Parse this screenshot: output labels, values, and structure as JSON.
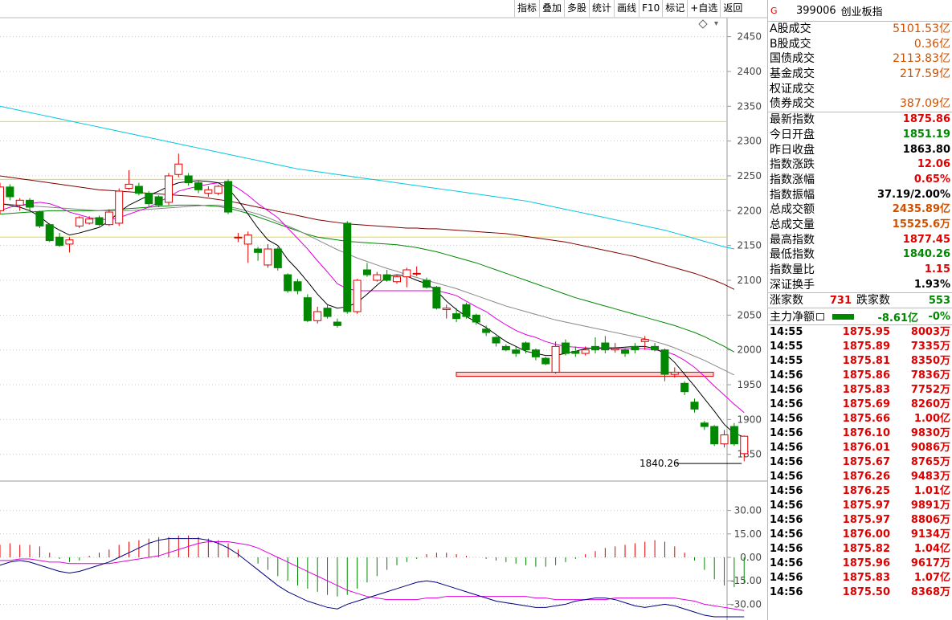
{
  "toolbar": {
    "items": [
      "指标",
      "叠加",
      "多股",
      "统计",
      "画线",
      "F10",
      "标记",
      "+自选",
      "返回"
    ]
  },
  "header": {
    "flag": "G",
    "code": "399006",
    "name": "创业板指"
  },
  "turnover": [
    {
      "label": "A股成交",
      "value": "5101.53亿"
    },
    {
      "label": "B股成交",
      "value": "0.36亿"
    },
    {
      "label": "国债成交",
      "value": "2113.83亿"
    },
    {
      "label": "基金成交",
      "value": "217.59亿"
    },
    {
      "label": "权证成交",
      "value": ""
    },
    {
      "label": "债券成交",
      "value": "387.09亿"
    }
  ],
  "quote": [
    {
      "label": "最新指数",
      "value": "1875.86",
      "color": "#e00000"
    },
    {
      "label": "今日开盘",
      "value": "1851.19",
      "color": "#008800"
    },
    {
      "label": "昨日收盘",
      "value": "1863.80",
      "color": "#000000"
    },
    {
      "label": "指数涨跌",
      "value": "12.06",
      "color": "#e00000"
    },
    {
      "label": "指数涨幅",
      "value": "0.65%",
      "color": "#e00000"
    },
    {
      "label": "指数振幅",
      "value": "37.19/2.00%",
      "color": "#000000"
    },
    {
      "label": "总成交额",
      "value": "2435.89亿",
      "color": "#d05000"
    },
    {
      "label": "总成交量",
      "value": "15525.6万",
      "color": "#d05000"
    },
    {
      "label": "最高指数",
      "value": "1877.45",
      "color": "#e00000"
    },
    {
      "label": "最低指数",
      "value": "1840.26",
      "color": "#008800"
    },
    {
      "label": "指数量比",
      "value": "1.15",
      "color": "#e00000"
    },
    {
      "label": "深证换手",
      "value": "1.93%",
      "color": "#000000"
    }
  ],
  "breadth": {
    "up_label": "涨家数",
    "up": "731",
    "down_label": "跌家数",
    "down": "553"
  },
  "main_force": {
    "label": "主力净额",
    "value": "-8.61亿",
    "pct": "-0%"
  },
  "ticks": [
    [
      "14:55",
      "1875.95",
      "8003万"
    ],
    [
      "14:55",
      "1875.89",
      "7335万"
    ],
    [
      "14:55",
      "1875.81",
      "8350万"
    ],
    [
      "14:56",
      "1875.86",
      "7836万"
    ],
    [
      "14:56",
      "1875.83",
      "7752万"
    ],
    [
      "14:56",
      "1875.69",
      "8260万"
    ],
    [
      "14:56",
      "1875.66",
      "1.00亿"
    ],
    [
      "14:56",
      "1876.10",
      "9830万"
    ],
    [
      "14:56",
      "1876.01",
      "9086万"
    ],
    [
      "14:56",
      "1875.67",
      "8765万"
    ],
    [
      "14:56",
      "1876.26",
      "9483万"
    ],
    [
      "14:56",
      "1876.25",
      "1.01亿"
    ],
    [
      "14:56",
      "1875.97",
      "9891万"
    ],
    [
      "14:56",
      "1875.97",
      "8806万"
    ],
    [
      "14:56",
      "1876.00",
      "9134万"
    ],
    [
      "14:56",
      "1875.82",
      "1.04亿"
    ],
    [
      "14:56",
      "1875.96",
      "9617万"
    ],
    [
      "14:56",
      "1875.83",
      "1.07亿"
    ],
    [
      "14:56",
      "1875.50",
      "8368万"
    ]
  ],
  "chart_data": {
    "type": "candlestick",
    "ylim": [
      1822,
      2468
    ],
    "yticks": [
      2450,
      2400,
      2350,
      2300,
      2250,
      2200,
      2150,
      2100,
      2050,
      2000,
      1950,
      1900,
      1850
    ],
    "hlines": [
      2328,
      2245,
      2162
    ],
    "support_band": [
      1968,
      1962
    ],
    "low_label": "1840.26",
    "colors": {
      "up": "#e00000",
      "down": "#008800",
      "ma5": "#000000",
      "ma10": "#e000e0",
      "ma20": "#888888",
      "ma30": "#008800",
      "ma60": "#800000",
      "ma120": "#00c8e0",
      "hline": "#e8e000",
      "support": "#e00000"
    },
    "candles": [
      [
        2200,
        2234,
        2240,
        2195
      ],
      [
        2234,
        2220,
        2238,
        2215
      ],
      [
        2208,
        2215,
        2218,
        2200
      ],
      [
        2215,
        2205,
        2218,
        2200
      ],
      [
        2198,
        2178,
        2200,
        2175
      ],
      [
        2180,
        2157,
        2182,
        2155
      ],
      [
        2162,
        2150,
        2168,
        2148
      ],
      [
        2152,
        2158,
        2162,
        2140
      ],
      [
        2178,
        2190,
        2192,
        2175
      ],
      [
        2182,
        2188,
        2192,
        2180
      ],
      [
        2190,
        2180,
        2193,
        2178
      ],
      [
        2180,
        2198,
        2202,
        2178
      ],
      [
        2182,
        2228,
        2232,
        2178
      ],
      [
        2232,
        2238,
        2258,
        2230
      ],
      [
        2235,
        2225,
        2240,
        2222
      ],
      [
        2225,
        2210,
        2228,
        2205
      ],
      [
        2220,
        2208,
        2222,
        2205
      ],
      [
        2212,
        2250,
        2254,
        2208
      ],
      [
        2252,
        2267,
        2282,
        2248
      ],
      [
        2250,
        2240,
        2254,
        2236
      ],
      [
        2240,
        2230,
        2242,
        2225
      ],
      [
        2225,
        2230,
        2235,
        2220
      ],
      [
        2225,
        2235,
        2237,
        2222
      ],
      [
        2242,
        2198,
        2245,
        2195
      ],
      [
        2162,
        2162,
        2168,
        2155
      ],
      [
        2152,
        2165,
        2170,
        2125
      ],
      [
        2145,
        2140,
        2148,
        2128
      ],
      [
        2122,
        2145,
        2152,
        2118
      ],
      [
        2145,
        2118,
        2148,
        2114
      ],
      [
        2108,
        2085,
        2110,
        2082
      ],
      [
        2098,
        2085,
        2102,
        2080
      ],
      [
        2075,
        2042,
        2080,
        2040
      ],
      [
        2042,
        2055,
        2062,
        2038
      ],
      [
        2060,
        2048,
        2065,
        2045
      ],
      [
        2040,
        2035,
        2045,
        2032
      ],
      [
        2182,
        2055,
        2185,
        2052
      ],
      [
        2055,
        2100,
        2102,
        2052
      ],
      [
        2115,
        2108,
        2125,
        2105
      ],
      [
        2100,
        2108,
        2112,
        2098
      ],
      [
        2108,
        2100,
        2115,
        2098
      ],
      [
        2098,
        2105,
        2108,
        2095
      ],
      [
        2105,
        2115,
        2118,
        2090
      ],
      [
        2110,
        2110,
        2120,
        2106
      ],
      [
        2100,
        2090,
        2104,
        2088
      ],
      [
        2090,
        2060,
        2092,
        2058
      ],
      [
        2058,
        2060,
        2065,
        2045
      ],
      [
        2052,
        2045,
        2060,
        2040
      ],
      [
        2065,
        2048,
        2068,
        2045
      ],
      [
        2050,
        2040,
        2052,
        2036
      ],
      [
        2030,
        2025,
        2035,
        2020
      ],
      [
        2018,
        2010,
        2020,
        2005
      ],
      [
        2005,
        2000,
        2008,
        1998
      ],
      [
        2000,
        1995,
        2005,
        1990
      ],
      [
        2010,
        2000,
        2012,
        1995
      ],
      [
        2000,
        1990,
        2002,
        1985
      ],
      [
        1988,
        1980,
        1990,
        1978
      ],
      [
        1968,
        2005,
        2012,
        1966
      ],
      [
        2010,
        1995,
        2015,
        1992
      ],
      [
        1998,
        1995,
        2005,
        1990
      ],
      [
        1995,
        2000,
        2005,
        1992
      ],
      [
        2005,
        2000,
        2018,
        1995
      ],
      [
        2010,
        2000,
        2020,
        1995
      ],
      [
        2000,
        2002,
        2010,
        1996
      ],
      [
        2000,
        1995,
        2002,
        1990
      ],
      [
        2005,
        2000,
        2010,
        1995
      ],
      [
        2012,
        2015,
        2020,
        2000
      ],
      [
        2005,
        2000,
        2010,
        1998
      ],
      [
        2000,
        1965,
        2002,
        1955
      ],
      [
        1965,
        1968,
        1975,
        1960
      ],
      [
        1952,
        1940,
        1955,
        1935
      ],
      [
        1925,
        1915,
        1930,
        1910
      ],
      [
        1895,
        1890,
        1898,
        1885
      ],
      [
        1890,
        1865,
        1892,
        1862
      ],
      [
        1865,
        1878,
        1885,
        1860
      ],
      [
        1890,
        1865,
        1895,
        1862
      ],
      [
        1851,
        1876,
        1877,
        1840
      ]
    ],
    "ma5": [
      2210,
      2208,
      2205,
      2200,
      2192,
      2180,
      2172,
      2165,
      2168,
      2172,
      2176,
      2185,
      2198,
      2208,
      2215,
      2222,
      2228,
      2235,
      2240,
      2242,
      2243,
      2242,
      2240,
      2232,
      2215,
      2195,
      2175,
      2158,
      2150,
      2130,
      2115,
      2098,
      2080,
      2065,
      2060,
      2062,
      2068,
      2080,
      2093,
      2105,
      2108,
      2106,
      2100,
      2095,
      2085,
      2070,
      2058,
      2048,
      2040,
      2032,
      2022,
      2012,
      2005,
      1998,
      1995,
      1992,
      1992,
      1995,
      1998,
      2002,
      2003,
      2003,
      2003,
      2004,
      2005,
      2005,
      2002,
      1995,
      1982,
      1965,
      1948,
      1930,
      1912,
      1893,
      1880,
      1875
    ],
    "ma10": [
      2200,
      2205,
      2208,
      2210,
      2212,
      2210,
      2205,
      2198,
      2194,
      2190,
      2188,
      2187,
      2190,
      2195,
      2200,
      2205,
      2212,
      2220,
      2228,
      2232,
      2235,
      2238,
      2240,
      2240,
      2232,
      2222,
      2210,
      2200,
      2190,
      2175,
      2160,
      2145,
      2128,
      2112,
      2095,
      2088,
      2085,
      2085,
      2085,
      2085,
      2085,
      2085,
      2085,
      2085,
      2085,
      2082,
      2078,
      2070,
      2062,
      2055,
      2045,
      2036,
      2028,
      2022,
      2018,
      2012,
      2008,
      2005,
      2004,
      2003,
      2002,
      2002,
      2002,
      2002,
      2002,
      2002,
      2000,
      1998,
      1993,
      1985,
      1975,
      1962,
      1948,
      1935,
      1922,
      1910
    ],
    "ma20": [
      2210,
      2209,
      2208,
      2207,
      2206,
      2205,
      2204,
      2203,
      2202,
      2201,
      2200,
      2200,
      2200,
      2200,
      2201,
      2202,
      2203,
      2204,
      2205,
      2206,
      2207,
      2208,
      2208,
      2206,
      2203,
      2199,
      2195,
      2190,
      2184,
      2178,
      2172,
      2165,
      2158,
      2151,
      2144,
      2138,
      2132,
      2127,
      2122,
      2117,
      2113,
      2108,
      2104,
      2100,
      2096,
      2092,
      2088,
      2083,
      2078,
      2073,
      2068,
      2063,
      2059,
      2055,
      2051,
      2047,
      2043,
      2040,
      2037,
      2034,
      2031,
      2028,
      2025,
      2022,
      2019,
      2016,
      2012,
      2008,
      2003,
      1997,
      1991,
      1985,
      1978,
      1971,
      1964,
      1958
    ],
    "ma30": [
      2195,
      2196,
      2197,
      2198,
      2199,
      2200,
      2200,
      2200,
      2200,
      2200,
      2200,
      2201,
      2202,
      2203,
      2204,
      2205,
      2206,
      2207,
      2208,
      2208,
      2208,
      2207,
      2206,
      2204,
      2200,
      2196,
      2191,
      2186,
      2181,
      2176,
      2171,
      2166,
      2162,
      2160,
      2158,
      2156,
      2155,
      2154,
      2153,
      2152,
      2151,
      2149,
      2147,
      2144,
      2141,
      2137,
      2133,
      2129,
      2125,
      2120,
      2115,
      2110,
      2105,
      2100,
      2095,
      2090,
      2085,
      2080,
      2075,
      2071,
      2067,
      2063,
      2059,
      2055,
      2051,
      2047,
      2043,
      2039,
      2035,
      2030,
      2025,
      2019,
      2012,
      2005,
      1997,
      1988
    ],
    "ma60": [
      2250,
      2248,
      2246,
      2244,
      2242,
      2240,
      2238,
      2236,
      2234,
      2232,
      2230,
      2229,
      2228,
      2227,
      2226,
      2225,
      2224,
      2223,
      2222,
      2221,
      2220,
      2218,
      2216,
      2214,
      2211,
      2208,
      2205,
      2202,
      2199,
      2196,
      2193,
      2190,
      2187,
      2185,
      2183,
      2181,
      2180,
      2179,
      2178,
      2177,
      2176,
      2175,
      2175,
      2174,
      2174,
      2173,
      2172,
      2171,
      2170,
      2169,
      2168,
      2167,
      2165,
      2163,
      2161,
      2159,
      2157,
      2155,
      2152,
      2149,
      2146,
      2143,
      2140,
      2137,
      2134,
      2130,
      2126,
      2122,
      2118,
      2114,
      2110,
      2105,
      2100,
      2094,
      2087,
      2080
    ],
    "ma120": [
      2350,
      2347,
      2344,
      2341,
      2338,
      2335,
      2332,
      2329,
      2326,
      2323,
      2320,
      2317,
      2314,
      2311,
      2308,
      2305,
      2302,
      2299,
      2296,
      2293,
      2290,
      2287,
      2284,
      2281,
      2278,
      2275,
      2272,
      2269,
      2266,
      2263,
      2260,
      2258,
      2256,
      2254,
      2252,
      2250,
      2248,
      2246,
      2244,
      2242,
      2240,
      2238,
      2236,
      2234,
      2232,
      2230,
      2228,
      2226,
      2224,
      2222,
      2220,
      2218,
      2216,
      2214,
      2211,
      2208,
      2205,
      2202,
      2199,
      2196,
      2193,
      2190,
      2187,
      2184,
      2181,
      2178,
      2175,
      2172,
      2168,
      2164,
      2160,
      2156,
      2152,
      2148,
      2145,
      2143
    ],
    "ma60_to": 74,
    "ma120_to": 74,
    "ma30_to": 74,
    "ma20_to": 74,
    "macd": {
      "ylim": [
        -38,
        38
      ],
      "yticks": [
        "30.00",
        "15.00",
        "0.00",
        "-15.00",
        "-30.00"
      ],
      "ytick_values": [
        30,
        15,
        0,
        -15,
        -30
      ],
      "hist": [
        8,
        9,
        8,
        8,
        7,
        3,
        -1,
        -3,
        -2,
        1,
        3,
        5,
        8,
        10,
        11,
        12,
        13,
        13,
        14,
        14,
        13,
        12,
        11,
        9,
        5,
        0,
        -4,
        -8,
        -12,
        -15,
        -18,
        -20,
        -22,
        -24,
        -25,
        -24,
        -20,
        -16,
        -12,
        -8,
        -5,
        -3,
        -1,
        2,
        3,
        3,
        2,
        1,
        0,
        -1,
        -2,
        -3,
        -4,
        -5,
        -6,
        -6,
        -5,
        -3,
        -1,
        2,
        4,
        6,
        7,
        8,
        9,
        10,
        11,
        10,
        7,
        3,
        -2,
        -8,
        -14,
        -18,
        -19,
        -16
      ],
      "dif": [
        -5,
        -3,
        -2,
        -3,
        -5,
        -7,
        -9,
        -10,
        -9,
        -7,
        -5,
        -3,
        0,
        3,
        6,
        9,
        11,
        12,
        12,
        12,
        12,
        11,
        9,
        6,
        2,
        -3,
        -8,
        -13,
        -18,
        -22,
        -25,
        -28,
        -30,
        -32,
        -33,
        -30,
        -28,
        -26,
        -24,
        -22,
        -20,
        -18,
        -16,
        -15,
        -16,
        -18,
        -20,
        -22,
        -24,
        -26,
        -28,
        -29,
        -30,
        -31,
        -32,
        -32,
        -31,
        -30,
        -28,
        -27,
        -26,
        -26,
        -27,
        -29,
        -31,
        -32,
        -31,
        -30,
        -31,
        -33,
        -35,
        -37,
        -38,
        -38,
        -38,
        -38
      ],
      "dea": [
        -2,
        -2,
        -1,
        -1,
        -2,
        -3,
        -3,
        -4,
        -4,
        -4,
        -4,
        -4,
        -3,
        -2,
        -1,
        0,
        1,
        3,
        5,
        7,
        9,
        10,
        10,
        10,
        9,
        8,
        6,
        3,
        0,
        -3,
        -6,
        -9,
        -12,
        -15,
        -18,
        -21,
        -23,
        -25,
        -26,
        -27,
        -27,
        -27,
        -27,
        -26,
        -26,
        -25,
        -25,
        -25,
        -25,
        -25,
        -25,
        -25,
        -25,
        -25,
        -26,
        -26,
        -27,
        -27,
        -27,
        -27,
        -27,
        -27,
        -26,
        -26,
        -26,
        -26,
        -26,
        -26,
        -26,
        -27,
        -28,
        -30,
        -31,
        -32,
        -33,
        -34
      ],
      "colors": {
        "up": "#e00000",
        "down": "#008800",
        "dif": "#000080",
        "dea": "#e000e0"
      }
    }
  }
}
